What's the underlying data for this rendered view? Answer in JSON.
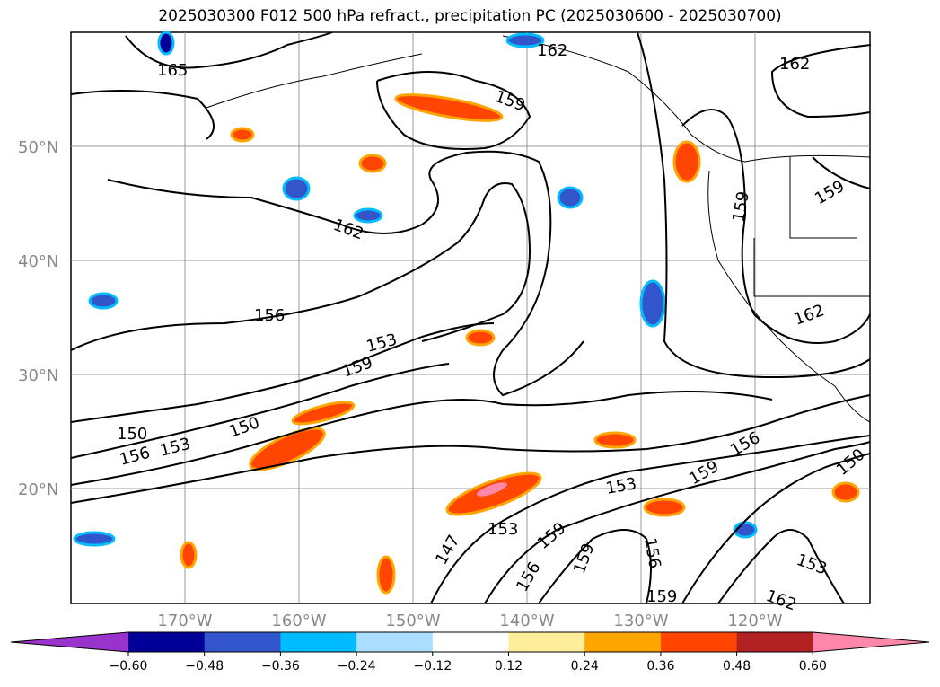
{
  "title": "2025030300 F012 500 hPa refract., precipitation PC (2025030600 - 2025030700)",
  "map": {
    "lat_labels": [
      "50°N",
      "40°N",
      "30°N",
      "20°N"
    ],
    "lon_labels": [
      "170°W",
      "160°W",
      "150°W",
      "140°W",
      "130°W",
      "120°W"
    ],
    "contour_labels": [
      "165",
      "162",
      "159",
      "162",
      "156",
      "153",
      "159",
      "150",
      "150",
      "156",
      "153",
      "147",
      "153",
      "159",
      "156",
      "159",
      "156",
      "159",
      "153",
      "159",
      "156",
      "150",
      "162",
      "159",
      "162",
      "162",
      "159",
      "153"
    ]
  },
  "colorbar": {
    "colors": [
      "#9933cc",
      "#000099",
      "#3355cc",
      "#00bbff",
      "#aaddff",
      "#ffffff",
      "#ffee99",
      "#ffa500",
      "#ff4500",
      "#b22222",
      "#ff88aa"
    ],
    "ticks": [
      "−0.60",
      "−0.48",
      "−0.36",
      "−0.24",
      "−0.12",
      "0.12",
      "0.24",
      "0.36",
      "0.48",
      "0.60"
    ]
  }
}
